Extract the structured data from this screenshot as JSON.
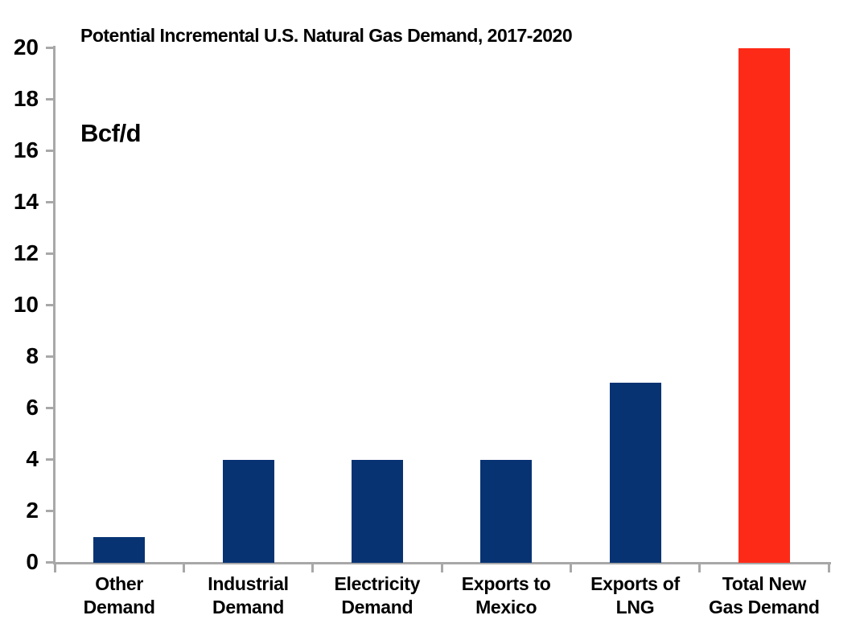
{
  "chart": {
    "title": "Potential Incremental U.S. Natural Gas Demand, 2017-2020",
    "unit_label": "Bcf/d"
  },
  "chart_data": {
    "type": "bar",
    "title": "Potential Incremental U.S. Natural Gas Demand, 2017-2020",
    "ylabel": "Bcf/d",
    "xlabel": "",
    "categories": [
      "Other\nDemand",
      "Industrial\nDemand",
      "Electricity\nDemand",
      "Exports to\nMexico",
      "Exports of\nLNG",
      "Total New\nGas Demand"
    ],
    "values": [
      1,
      4,
      4,
      4,
      7,
      20
    ],
    "bar_colors": [
      "#073373",
      "#073373",
      "#073373",
      "#073373",
      "#073373",
      "#FE2A18"
    ],
    "highlight_color": "#FE2A18",
    "base_color": "#073373",
    "axis_color": "#A8A8A8",
    "ylim": [
      0,
      20
    ],
    "ytick_step": 2,
    "ytick_labels": [
      "0",
      "2",
      "4",
      "6",
      "8",
      "10",
      "12",
      "14",
      "16",
      "18",
      "20"
    ],
    "grid": false,
    "legend": "none"
  }
}
